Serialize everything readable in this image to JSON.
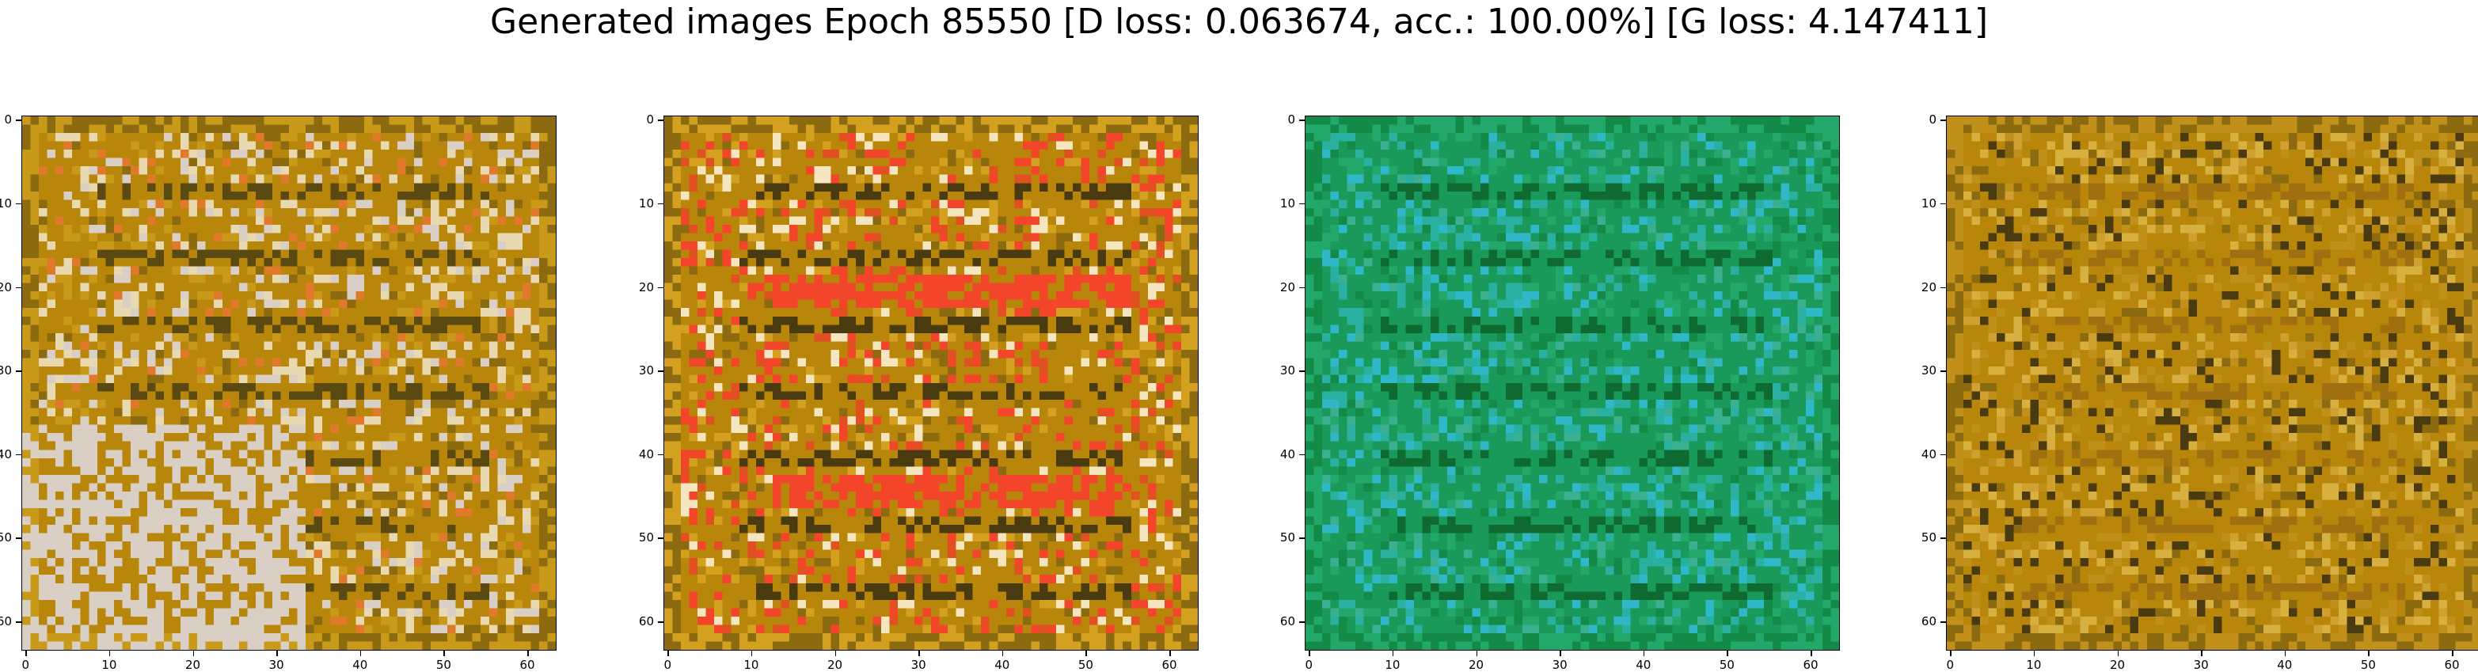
{
  "title": "Generated images Epoch 85550 [D loss: 0.063674, acc.: 100.00%] [G loss: 4.147411]",
  "axis": {
    "pixels": 64,
    "ticks": [
      0,
      10,
      20,
      30,
      40,
      50,
      60
    ],
    "tick_labels": [
      "0",
      "10",
      "20",
      "30",
      "40",
      "50",
      "60"
    ]
  },
  "panels": [
    {
      "id": "sample-1",
      "palette": [
        "#b8860b",
        "#c99a1a",
        "#8c6a10",
        "#e8d9b0",
        "#d9cfc4",
        "#5a4a12",
        "#e07a2a"
      ]
    },
    {
      "id": "sample-2",
      "palette": [
        "#b8860b",
        "#d4a020",
        "#8c6a10",
        "#f2452a",
        "#f5e6c0",
        "#4a3a10",
        "#e05020"
      ]
    },
    {
      "id": "sample-3",
      "palette": [
        "#1a9a5a",
        "#22a86a",
        "#148a48",
        "#2ab0a0",
        "#30b8c8",
        "#0e6a30",
        "#3ab090"
      ]
    },
    {
      "id": "sample-4",
      "palette": [
        "#b8860b",
        "#c0901a",
        "#8c6a10",
        "#d8b040",
        "#4a3a10",
        "#a07010",
        "#d0a030"
      ]
    }
  ]
}
